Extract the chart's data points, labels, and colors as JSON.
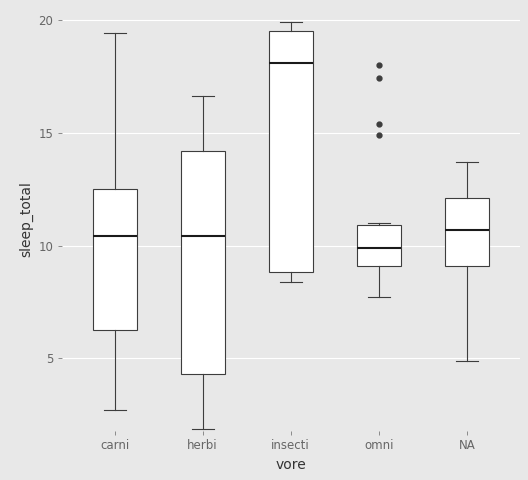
{
  "categories": [
    "carni",
    "herbi",
    "insecti",
    "omni",
    "NA"
  ],
  "boxes": {
    "carni": {
      "whislo": 2.7,
      "q1": 6.25,
      "med": 10.4,
      "q3": 12.5,
      "whishi": 19.4,
      "fliers": []
    },
    "herbi": {
      "whislo": 1.9,
      "q1": 4.3,
      "med": 10.4,
      "q3": 14.2,
      "whishi": 16.6,
      "fliers": []
    },
    "insecti": {
      "whislo": 8.4,
      "q1": 8.85,
      "med": 18.1,
      "q3": 19.5,
      "whishi": 19.9,
      "fliers": []
    },
    "omni": {
      "whislo": 7.7,
      "q1": 9.1,
      "med": 9.9,
      "q3": 10.9,
      "whishi": 11.0,
      "fliers": [
        14.9,
        15.4,
        17.4,
        18.0
      ]
    },
    "NA": {
      "whislo": 4.9,
      "q1": 9.1,
      "med": 10.7,
      "q3": 12.1,
      "whishi": 13.7,
      "fliers": []
    }
  },
  "xlabel": "vore",
  "ylabel": "sleep_total",
  "ylim": [
    1.8,
    20.5
  ],
  "yticks": [
    5,
    10,
    15,
    20
  ],
  "bg_color": "#E8E8E8",
  "plot_bg_color": "#E8E8E8",
  "box_facecolor": "white",
  "box_edgecolor": "#3D3D3D",
  "median_color": "#1A1A1A",
  "whisker_color": "#3D3D3D",
  "cap_color": "#3D3D3D",
  "flier_color": "#3D3D3D",
  "grid_color": "#FFFFFF",
  "box_width": 0.5,
  "linewidth": 0.8,
  "median_linewidth": 1.5,
  "cap_linewidth": 0.8,
  "tick_fontsize": 8.5,
  "label_fontsize": 10,
  "flier_size": 3.5
}
